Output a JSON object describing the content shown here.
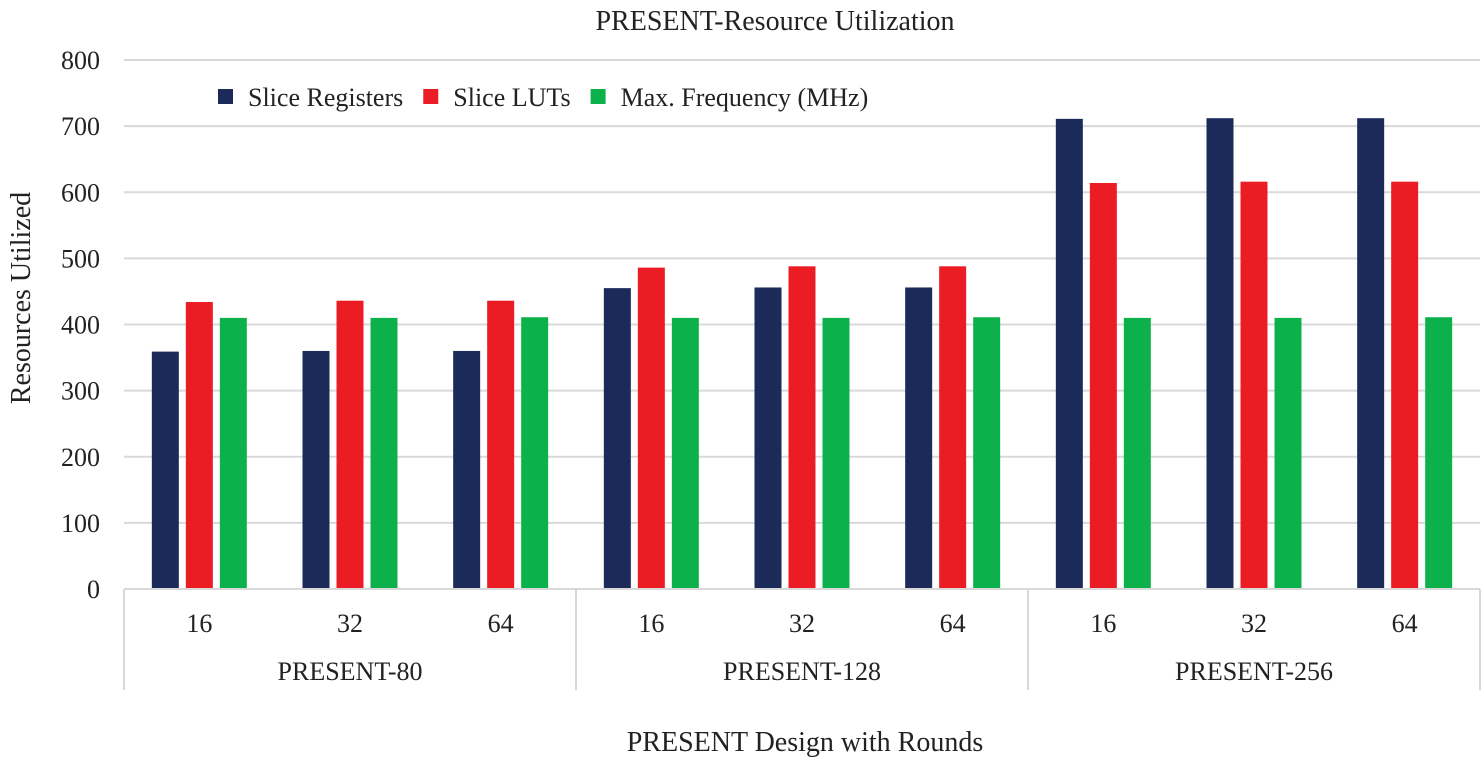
{
  "chart_data": {
    "type": "bar",
    "title": "PRESENT-Resource Utilization",
    "xlabel": "PRESENT Design with Rounds",
    "ylabel": "Resources Utilized",
    "ylim": [
      0,
      800
    ],
    "yticks": [
      0,
      100,
      200,
      300,
      400,
      500,
      600,
      700,
      800
    ],
    "grid": true,
    "legend_position": "top-left",
    "groups": [
      {
        "label": "PRESENT-80",
        "categories": [
          "16",
          "32",
          "64"
        ]
      },
      {
        "label": "PRESENT-128",
        "categories": [
          "16",
          "32",
          "64"
        ]
      },
      {
        "label": "PRESENT-256",
        "categories": [
          "16",
          "32",
          "64"
        ]
      }
    ],
    "series": [
      {
        "name": "Slice Registers",
        "color": "#1c2a5a",
        "values": [
          359,
          360,
          360,
          455,
          456,
          456,
          711,
          712,
          712
        ]
      },
      {
        "name": "Slice LUTs",
        "color": "#ec1c24",
        "values": [
          434,
          436,
          436,
          486,
          488,
          488,
          614,
          616,
          616
        ]
      },
      {
        "name": "Max. Frequency (MHz)",
        "color": "#0db14b",
        "values": [
          410,
          410,
          411,
          410,
          410,
          411,
          410,
          410,
          411
        ]
      }
    ]
  }
}
